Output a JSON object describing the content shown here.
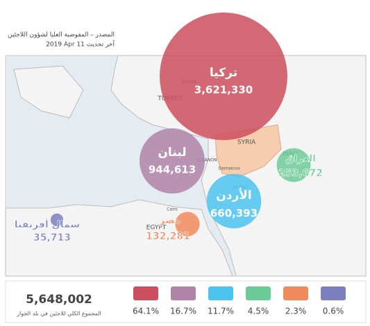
{
  "header": {
    "source": "المصدر – المفوضية العليا لشؤون اللاجئين",
    "updated": "2019 Apr 11 آخر تحديث"
  },
  "regions": [
    {
      "name": "تركيا",
      "value": 3621330,
      "label": "3,621,330",
      "color": "#cc4f5e",
      "share": 64.1,
      "share_label": "64.1%"
    },
    {
      "name": "لبنان",
      "value": 944613,
      "label": "944,613",
      "color": "#b084a8",
      "share": 16.7,
      "share_label": "16.7%"
    },
    {
      "name": "الأردن",
      "value": 660393,
      "label": "660,393",
      "color": "#4cc3ee",
      "share": 11.7,
      "share_label": "11.7%"
    },
    {
      "name": "العراق",
      "value": 253672,
      "label": "253,672",
      "color": "#6dcb98",
      "share": 4.5,
      "share_label": "4.5%"
    },
    {
      "name": "مصر",
      "value": 132281,
      "label": "132,281",
      "color": "#f08a5d",
      "share": 2.3,
      "share_label": "2.3%"
    },
    {
      "name": "شمال أفريقيا",
      "value": 35713,
      "label": "35,713",
      "color": "#7b80bf",
      "share": 0.6,
      "share_label": "0.6%"
    }
  ],
  "map_labels": [
    "TURKEY",
    "Ankara",
    "SYRIA",
    "IRAQ",
    "LEBANON",
    "Damascus",
    "Jordan",
    "Cairo",
    "EGYPT"
  ],
  "total": {
    "value": "5,648,002",
    "caption": "المجموع الكلي للاجئين في بلد الجوار"
  }
}
